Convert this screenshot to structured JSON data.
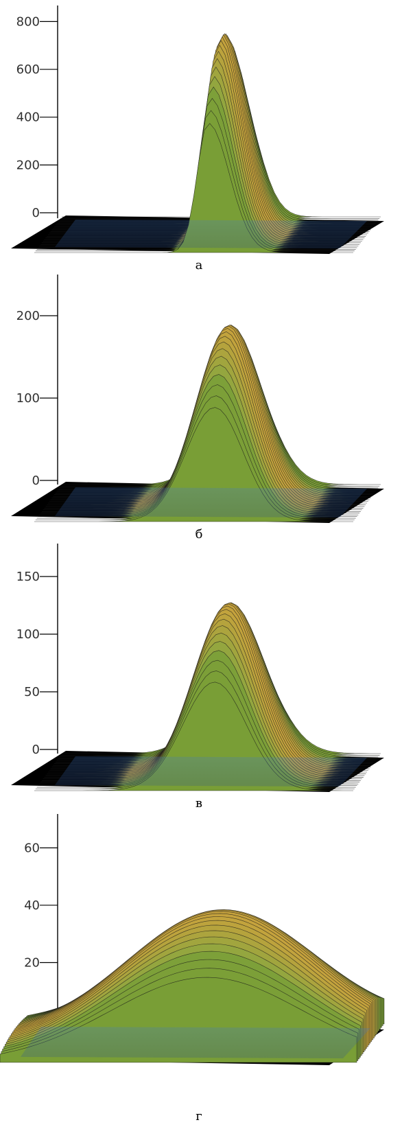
{
  "figure": {
    "background": "#ffffff",
    "colors": {
      "base_plane": "#000000",
      "low": "#3a6fc4",
      "mid": "#6f9a2e",
      "high": "#d9a13c",
      "peak": "#f2e6b6",
      "mesh": "#1a1a1a",
      "axis": "#000000"
    }
  },
  "chart_data": [
    {
      "type": "surface",
      "caption": "а",
      "ylim": [
        0,
        850
      ],
      "yticks": [
        0,
        200,
        400,
        600,
        800
      ],
      "peak": 840,
      "peak_x_fraction": 0.545,
      "width_fraction": 0.035,
      "skew": 1.9
    },
    {
      "type": "surface",
      "caption": "б",
      "ylim": [
        0,
        240
      ],
      "yticks": [
        0,
        100,
        200
      ],
      "peak": 215,
      "peak_x_fraction": 0.565,
      "width_fraction": 0.09,
      "skew": 1.0
    },
    {
      "type": "surface",
      "caption": "в",
      "ylim": [
        0,
        175
      ],
      "yticks": [
        0,
        50,
        100,
        150
      ],
      "peak": 146,
      "peak_x_fraction": 0.565,
      "width_fraction": 0.1,
      "skew": 1.0
    },
    {
      "type": "surface",
      "caption": "г",
      "ylim": [
        0,
        68
      ],
      "yticks": [
        0,
        20,
        40,
        60
      ],
      "peak": 46,
      "peak_x_fraction": 0.58,
      "width_fraction": 0.27,
      "skew": 1.0
    }
  ]
}
